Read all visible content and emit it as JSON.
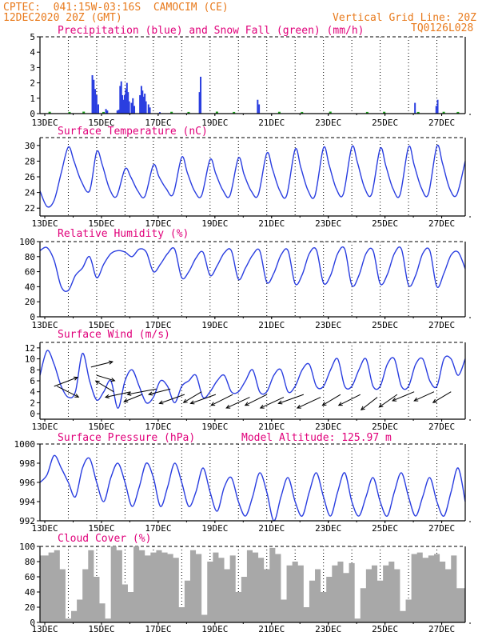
{
  "header": {
    "line1_left": "CPTEC:  041:15W-03:16S  CAMOCIM (CE)",
    "line2_left": "12DEC2020 20Z (GMT)",
    "line2_right": "Vertical Grid Line: 20Z",
    "line3_right": "TQ0126L028"
  },
  "colors": {
    "header": "#e87a1c",
    "title": "#e0007a",
    "series": "#2a3ee0",
    "snow": "#1aa01a",
    "cloud": "#a8a8a8",
    "axis": "#000000"
  },
  "x_ticks": [
    "13DEC",
    "15DEC",
    "17DEC",
    "19DEC",
    "21DEC",
    "23DEC",
    "25DEC",
    "27DEC"
  ],
  "chart_data": [
    {
      "id": "precip",
      "type": "bar",
      "title": "Precipitation (blue) and Snow Fall (green) (mm/h)",
      "ylim": [
        0,
        5
      ],
      "yticks": [
        "0",
        "1",
        "2",
        "3",
        "4",
        "5"
      ],
      "x_unit": "days since 12DEC2020 20Z",
      "precip": [
        [
          1.82,
          2.5
        ],
        [
          1.87,
          2.2
        ],
        [
          1.92,
          1.6
        ],
        [
          1.97,
          1.2
        ],
        [
          2.03,
          0.6
        ],
        [
          2.3,
          0.3
        ],
        [
          2.35,
          0.2
        ],
        [
          2.7,
          0.2
        ],
        [
          2.75,
          0.25
        ],
        [
          2.8,
          1.8
        ],
        [
          2.84,
          2.1
        ],
        [
          2.88,
          1.2
        ],
        [
          2.92,
          0.9
        ],
        [
          2.96,
          1.2
        ],
        [
          3.0,
          1.6
        ],
        [
          3.04,
          2.0
        ],
        [
          3.08,
          1.4
        ],
        [
          3.12,
          0.8
        ],
        [
          3.2,
          0.7
        ],
        [
          3.25,
          1.0
        ],
        [
          3.3,
          0.5
        ],
        [
          3.5,
          1.2
        ],
        [
          3.55,
          1.8
        ],
        [
          3.59,
          1.5
        ],
        [
          3.63,
          1.1
        ],
        [
          3.67,
          1.3
        ],
        [
          3.71,
          0.8
        ],
        [
          3.8,
          0.6
        ],
        [
          3.85,
          0.4
        ],
        [
          4.2,
          0.1
        ],
        [
          5.6,
          1.4
        ],
        [
          5.64,
          2.4
        ],
        [
          7.65,
          0.9
        ],
        [
          7.7,
          0.6
        ],
        [
          13.2,
          0.7
        ],
        [
          13.95,
          0.5
        ],
        [
          14.0,
          0.9
        ]
      ],
      "snow": [
        [
          0.3,
          0.04
        ],
        [
          1.0,
          0.03
        ],
        [
          1.5,
          0.05
        ],
        [
          2.2,
          0.03
        ],
        [
          4.6,
          0.04
        ],
        [
          5.2,
          0.03
        ],
        [
          6.2,
          0.05
        ],
        [
          6.8,
          0.03
        ],
        [
          8.4,
          0.04
        ],
        [
          9.2,
          0.03
        ],
        [
          10.2,
          0.05
        ],
        [
          11.5,
          0.03
        ],
        [
          12.1,
          0.04
        ],
        [
          13.3,
          0.03
        ],
        [
          14.2,
          0.04
        ],
        [
          14.7,
          0.03
        ]
      ]
    },
    {
      "id": "temp",
      "type": "line",
      "title": "Surface Temperature (nC)",
      "ylim": [
        21,
        31
      ],
      "yticks": [
        "22",
        "24",
        "26",
        "28",
        "30"
      ],
      "x": [
        0,
        0.25,
        0.5,
        0.75,
        1.0,
        1.2,
        1.45,
        1.75,
        2.0,
        2.2,
        2.45,
        2.7,
        3.0,
        3.2,
        3.45,
        3.7,
        4.0,
        4.2,
        4.45,
        4.7,
        5.0,
        5.2,
        5.45,
        5.7,
        6.0,
        6.2,
        6.45,
        6.7,
        7.0,
        7.2,
        7.45,
        7.7,
        8.0,
        8.2,
        8.45,
        8.7,
        9.0,
        9.2,
        9.45,
        9.7,
        10.0,
        10.2,
        10.45,
        10.7,
        11.0,
        11.2,
        11.45,
        11.7,
        12.0,
        12.2,
        12.45,
        12.7,
        13.0,
        13.2,
        13.45,
        13.7,
        14.0,
        14.2,
        14.45,
        14.7,
        15.0
      ],
      "y": [
        24.2,
        22.2,
        23.0,
        26.5,
        29.8,
        28.0,
        25.5,
        24.2,
        29.2,
        27.5,
        24.5,
        23.5,
        27.0,
        26.0,
        24.2,
        23.5,
        27.5,
        26.0,
        24.5,
        23.8,
        28.5,
        26.5,
        24.2,
        23.6,
        28.2,
        26.4,
        24.3,
        23.6,
        28.4,
        26.3,
        24.2,
        23.7,
        29.0,
        27.0,
        24.3,
        23.6,
        29.5,
        27.2,
        24.3,
        23.6,
        29.7,
        27.5,
        24.5,
        23.8,
        29.8,
        27.8,
        24.6,
        23.8,
        29.6,
        27.4,
        24.5,
        23.7,
        29.8,
        27.5,
        24.6,
        23.8,
        29.9,
        27.7,
        24.5,
        23.7,
        28.0
      ]
    },
    {
      "id": "rh",
      "type": "line",
      "title": "Relative Humidity (%)",
      "ylim": [
        0,
        100
      ],
      "yticks": [
        "0",
        "20",
        "40",
        "60",
        "80",
        "100"
      ],
      "x": [
        0,
        0.25,
        0.5,
        0.75,
        1.0,
        1.25,
        1.5,
        1.75,
        2.0,
        2.25,
        2.5,
        2.75,
        3.0,
        3.25,
        3.5,
        3.75,
        4.0,
        4.25,
        4.5,
        4.75,
        5.0,
        5.25,
        5.5,
        5.75,
        6.0,
        6.25,
        6.5,
        6.75,
        7.0,
        7.25,
        7.5,
        7.75,
        8.0,
        8.25,
        8.5,
        8.75,
        9.0,
        9.25,
        9.5,
        9.75,
        10.0,
        10.25,
        10.5,
        10.75,
        11.0,
        11.25,
        11.5,
        11.75,
        12.0,
        12.25,
        12.5,
        12.75,
        13.0,
        13.25,
        13.5,
        13.75,
        14.0,
        14.25,
        14.5,
        14.75,
        15.0
      ],
      "y": [
        88,
        92,
        75,
        40,
        35,
        55,
        65,
        80,
        52,
        70,
        84,
        88,
        86,
        80,
        90,
        86,
        60,
        70,
        84,
        90,
        52,
        60,
        78,
        86,
        55,
        68,
        85,
        88,
        50,
        65,
        82,
        88,
        46,
        58,
        82,
        88,
        44,
        56,
        84,
        89,
        45,
        55,
        84,
        90,
        42,
        55,
        84,
        88,
        44,
        56,
        84,
        90,
        42,
        55,
        84,
        88,
        40,
        58,
        82,
        86,
        64
      ]
    },
    {
      "id": "wind",
      "type": "line",
      "title": "Surface Wind (m/s)",
      "ylim": [
        -1,
        13
      ],
      "yticks": [
        "0",
        "2",
        "4",
        "6",
        "8",
        "10",
        "12"
      ],
      "x": [
        0,
        0.25,
        0.5,
        0.75,
        1.0,
        1.25,
        1.5,
        1.75,
        2.0,
        2.25,
        2.5,
        2.75,
        3.0,
        3.25,
        3.5,
        3.75,
        4.0,
        4.25,
        4.5,
        4.75,
        5.0,
        5.25,
        5.5,
        5.75,
        6.0,
        6.25,
        6.5,
        6.75,
        7.0,
        7.25,
        7.5,
        7.75,
        8.0,
        8.25,
        8.5,
        8.75,
        9.0,
        9.25,
        9.5,
        9.75,
        10.0,
        10.25,
        10.5,
        10.75,
        11.0,
        11.25,
        11.5,
        11.75,
        12.0,
        12.25,
        12.5,
        12.75,
        13.0,
        13.25,
        13.5,
        13.75,
        14.0,
        14.25,
        14.5,
        14.75,
        15.0
      ],
      "y": [
        7,
        11.5,
        9,
        5,
        3,
        4,
        11,
        6,
        2.5,
        4,
        6,
        1,
        6,
        8,
        5,
        2,
        3,
        6,
        5,
        2,
        5,
        6,
        7,
        3,
        4,
        6,
        7,
        4,
        4,
        6,
        8,
        4,
        4,
        7,
        8,
        4,
        5,
        8,
        9,
        5,
        5,
        8,
        10,
        5,
        5,
        8,
        10,
        5,
        5,
        9,
        10,
        5,
        5,
        9,
        10,
        6,
        5,
        10,
        10,
        7,
        10
      ]
    },
    {
      "id": "pressure",
      "type": "line",
      "title": "Surface Pressure (hPa)",
      "annotation": "Model Altitude: 125.97 m",
      "ylim": [
        992,
        1000
      ],
      "yticks": [
        "992",
        "994",
        "996",
        "998",
        "1000"
      ],
      "x": [
        0,
        0.25,
        0.5,
        0.75,
        1.0,
        1.25,
        1.5,
        1.75,
        2.0,
        2.25,
        2.5,
        2.75,
        3.0,
        3.25,
        3.5,
        3.75,
        4.0,
        4.25,
        4.5,
        4.75,
        5.0,
        5.25,
        5.5,
        5.75,
        6.0,
        6.25,
        6.5,
        6.75,
        7.0,
        7.25,
        7.5,
        7.75,
        8.0,
        8.25,
        8.5,
        8.75,
        9.0,
        9.25,
        9.5,
        9.75,
        10.0,
        10.25,
        10.5,
        10.75,
        11.0,
        11.25,
        11.5,
        11.75,
        12.0,
        12.25,
        12.5,
        12.75,
        13.0,
        13.25,
        13.5,
        13.75,
        14.0,
        14.25,
        14.5,
        14.75,
        15.0
      ],
      "y": [
        996,
        996.8,
        998.8,
        997.5,
        996,
        994.5,
        997.5,
        998.5,
        996,
        994,
        996.5,
        998,
        996,
        993.5,
        995.5,
        998,
        996.5,
        993.5,
        995.5,
        998,
        996,
        993.5,
        995,
        997.5,
        995,
        993,
        995.5,
        996.5,
        994,
        992.5,
        994.5,
        997,
        995,
        992,
        994.5,
        996.5,
        994,
        992.5,
        995,
        997,
        994.5,
        992.5,
        995,
        997,
        994,
        992.5,
        994.5,
        996.5,
        994,
        992.5,
        995,
        997,
        994.5,
        992.5,
        994.5,
        996.5,
        994,
        992.5,
        995,
        997.5,
        994
      ]
    },
    {
      "id": "cloud",
      "type": "area",
      "title": "Cloud Cover (%)",
      "ylim": [
        0,
        100
      ],
      "yticks": [
        "0",
        "20",
        "40",
        "60",
        "80",
        "100"
      ],
      "x": [
        0,
        0.3,
        0.5,
        0.7,
        0.9,
        1.1,
        1.3,
        1.5,
        1.7,
        1.9,
        2.1,
        2.3,
        2.5,
        2.7,
        2.9,
        3.1,
        3.3,
        3.5,
        3.7,
        3.9,
        4.1,
        4.3,
        4.5,
        4.7,
        4.9,
        5.1,
        5.3,
        5.5,
        5.7,
        5.9,
        6.1,
        6.3,
        6.5,
        6.7,
        6.9,
        7.1,
        7.3,
        7.5,
        7.7,
        7.9,
        8.1,
        8.3,
        8.5,
        8.7,
        8.9,
        9.1,
        9.3,
        9.5,
        9.7,
        9.9,
        10.1,
        10.3,
        10.5,
        10.7,
        10.9,
        11.1,
        11.3,
        11.5,
        11.7,
        11.9,
        12.1,
        12.3,
        12.5,
        12.7,
        12.9,
        13.1,
        13.3,
        13.5,
        13.7,
        13.9,
        14.1,
        14.3,
        14.5,
        14.7,
        15.0
      ],
      "y": [
        88,
        92,
        95,
        70,
        5,
        15,
        30,
        70,
        95,
        60,
        25,
        5,
        100,
        95,
        50,
        40,
        100,
        95,
        88,
        92,
        95,
        92,
        90,
        85,
        20,
        55,
        95,
        90,
        10,
        80,
        92,
        85,
        70,
        88,
        40,
        60,
        95,
        92,
        85,
        70,
        98,
        90,
        30,
        75,
        80,
        75,
        20,
        55,
        70,
        40,
        60,
        75,
        80,
        65,
        78,
        5,
        45,
        70,
        75,
        55,
        75,
        80,
        70,
        15,
        30,
        90,
        92,
        85,
        88,
        90,
        80,
        70,
        88,
        45,
        20
      ]
    }
  ],
  "wind_vectors": [
    [
      0.5,
      5,
      6.5,
      -2.5
    ],
    [
      0.6,
      5,
      6.0,
      3.0
    ],
    [
      1.8,
      8.5,
      6.0,
      -1.5
    ],
    [
      2.0,
      7.0,
      5.0,
      1.5
    ],
    [
      2.6,
      4.0,
      -5.0,
      -3.0
    ],
    [
      3.2,
      4.0,
      -7.0,
      1.5
    ],
    [
      3.6,
      3.5,
      -5.0,
      2.0
    ],
    [
      4.1,
      4.5,
      -8.0,
      1.5
    ],
    [
      4.6,
      4.5,
      -6.0,
      1.5
    ],
    [
      5.1,
      3.5,
      -7.0,
      2.5
    ],
    [
      5.7,
      4.0,
      -5.0,
      3.0
    ],
    [
      6.2,
      3.5,
      -7.0,
      2.5
    ],
    [
      6.8,
      3.5,
      -6.0,
      3.0
    ],
    [
      7.4,
      3.0,
      -6.5,
      3.0
    ],
    [
      8.0,
      3.5,
      -6.0,
      3.0
    ],
    [
      8.6,
      3.0,
      -6.5,
      3.0
    ],
    [
      9.3,
      3.5,
      -7.0,
      2.5
    ],
    [
      9.9,
      3.0,
      -6.5,
      3.0
    ],
    [
      10.6,
      3.5,
      -5.0,
      3.0
    ],
    [
      11.3,
      3.5,
      -6.0,
      3.0
    ],
    [
      11.9,
      3.0,
      -4.5,
      3.5
    ],
    [
      12.6,
      3.5,
      -5.0,
      3.5
    ],
    [
      13.2,
      4.0,
      -6.0,
      2.5
    ],
    [
      13.9,
      4.0,
      -5.5,
      2.5
    ],
    [
      14.5,
      4.0,
      -5.0,
      3.0
    ]
  ]
}
